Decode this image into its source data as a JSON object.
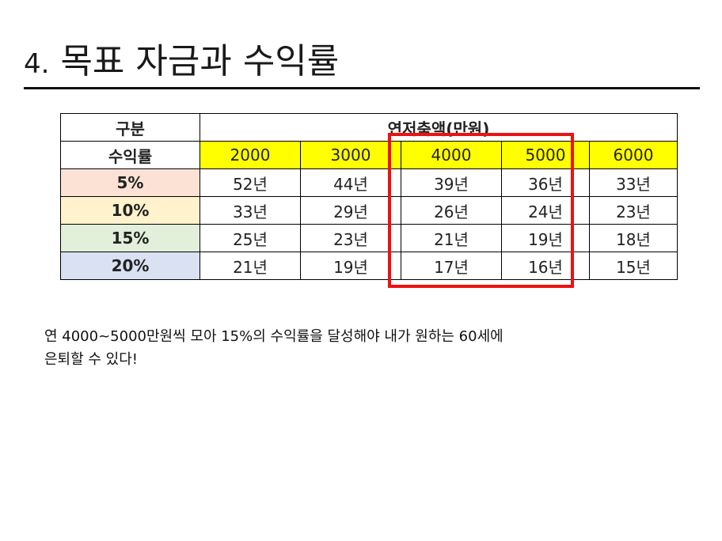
{
  "slide": {
    "title_number": "4.",
    "title_text": "목표 자금과 수익률"
  },
  "table": {
    "header_label": "구분",
    "group_label": "연저축액(만원)",
    "rate_label": "수익률",
    "amounts": [
      "2000",
      "3000",
      "4000",
      "5000",
      "6000"
    ],
    "rows": [
      {
        "rate": "5%",
        "color": "#fbe2d5",
        "years": [
          "52년",
          "44년",
          "39년",
          "36년",
          "33년"
        ]
      },
      {
        "rate": "10%",
        "color": "#fff2cc",
        "years": [
          "33년",
          "29년",
          "26년",
          "24년",
          "23년"
        ]
      },
      {
        "rate": "15%",
        "color": "#e2efda",
        "years": [
          "25년",
          "23년",
          "21년",
          "19년",
          "18년"
        ]
      },
      {
        "rate": "20%",
        "color": "#d9e1f2",
        "years": [
          "21년",
          "19년",
          "17년",
          "16년",
          "15년"
        ]
      }
    ],
    "amount_fill": "#ffff00",
    "highlight_color": "#ee1111"
  },
  "note": {
    "line1": "연 4000~5000만원씩 모아 15%의 수익률을 달성해야 내가 원하는 60세에",
    "line2": "은퇴할 수 있다!"
  }
}
